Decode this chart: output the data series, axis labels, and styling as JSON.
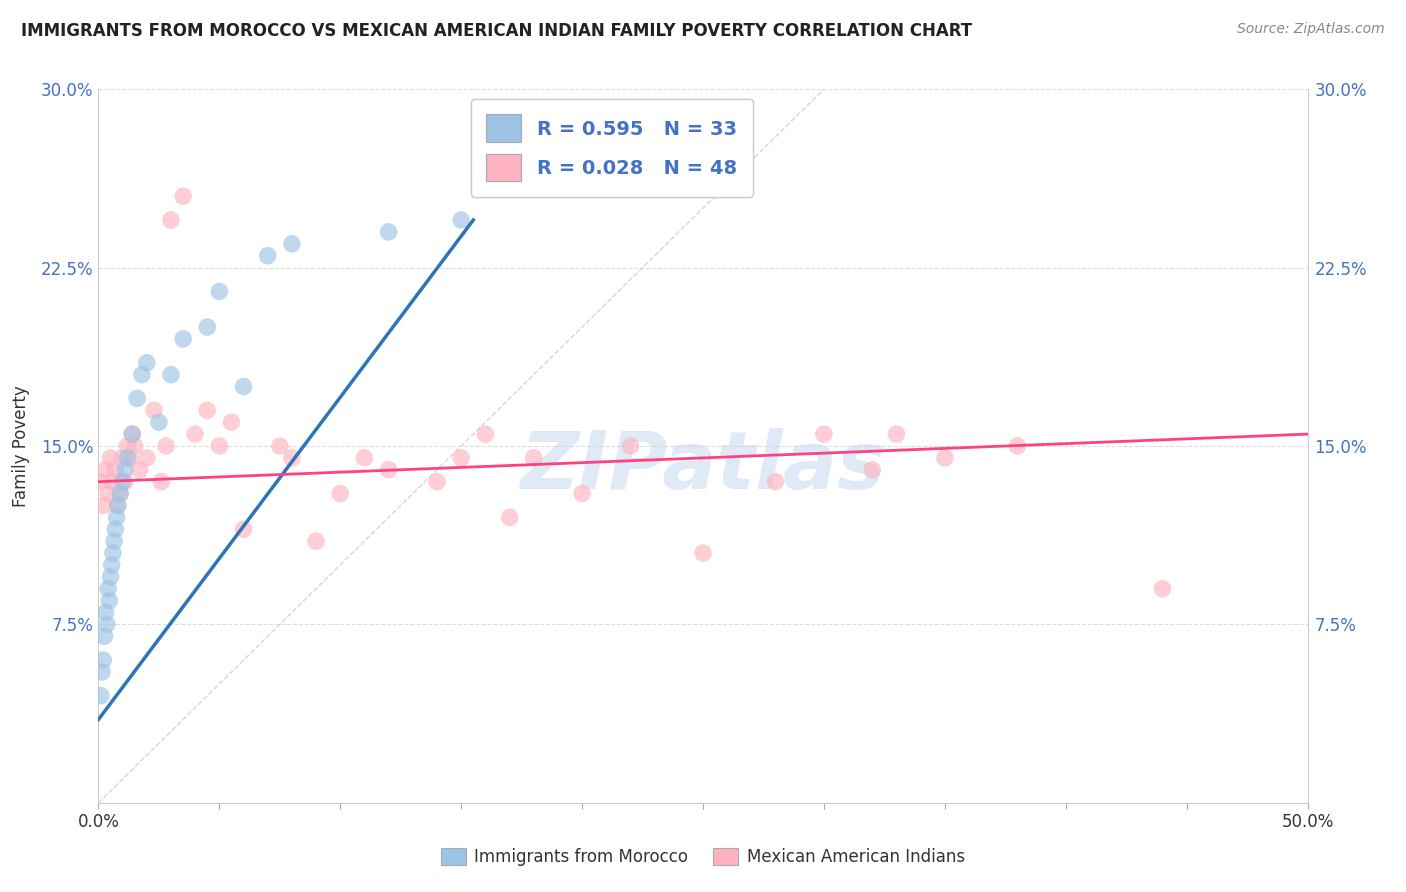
{
  "title": "IMMIGRANTS FROM MOROCCO VS MEXICAN AMERICAN INDIAN FAMILY POVERTY CORRELATION CHART",
  "source": "Source: ZipAtlas.com",
  "ylabel": "Family Poverty",
  "xlim": [
    0,
    50
  ],
  "ylim": [
    0,
    30
  ],
  "xtick_positions": [
    0,
    5,
    10,
    15,
    20,
    25,
    30,
    35,
    40,
    45,
    50
  ],
  "xtick_labels_shown": {
    "0": "0.0%",
    "50": "50.0%"
  },
  "ytick_vals": [
    7.5,
    15.0,
    22.5,
    30.0
  ],
  "ytick_labels": [
    "7.5%",
    "15.0%",
    "22.5%",
    "30.0%"
  ],
  "legend_R": [
    0.595,
    0.028
  ],
  "legend_N": [
    33,
    48
  ],
  "legend_series": [
    "Immigrants from Morocco",
    "Mexican American Indians"
  ],
  "color_blue": "#9DC3E6",
  "color_pink": "#FFB3C1",
  "line_blue": "#2E75B6",
  "line_pink": "#FF4081",
  "watermark": "ZIPatlas",
  "blue_x": [
    0.1,
    0.15,
    0.2,
    0.25,
    0.3,
    0.35,
    0.4,
    0.45,
    0.5,
    0.55,
    0.6,
    0.65,
    0.7,
    0.75,
    0.8,
    0.9,
    1.0,
    1.1,
    1.2,
    1.4,
    1.6,
    1.8,
    2.0,
    2.5,
    3.0,
    3.5,
    4.5,
    5.0,
    6.0,
    7.0,
    8.0,
    12.0,
    15.0
  ],
  "blue_y": [
    4.5,
    5.5,
    6.0,
    7.0,
    8.0,
    7.5,
    9.0,
    8.5,
    9.5,
    10.0,
    10.5,
    11.0,
    11.5,
    12.0,
    12.5,
    13.0,
    13.5,
    14.0,
    14.5,
    15.5,
    17.0,
    18.0,
    18.5,
    16.0,
    18.0,
    19.5,
    20.0,
    21.5,
    17.5,
    23.0,
    23.5,
    24.0,
    24.5
  ],
  "pink_x": [
    0.1,
    0.2,
    0.3,
    0.4,
    0.5,
    0.6,
    0.7,
    0.8,
    0.9,
    1.0,
    1.1,
    1.2,
    1.3,
    1.4,
    1.5,
    1.7,
    2.0,
    2.3,
    2.6,
    2.8,
    3.0,
    3.5,
    4.0,
    4.5,
    5.0,
    5.5,
    6.0,
    7.5,
    8.0,
    9.0,
    10.0,
    11.0,
    12.0,
    14.0,
    15.0,
    16.0,
    17.0,
    18.0,
    20.0,
    22.0,
    25.0,
    28.0,
    30.0,
    32.0,
    33.0,
    35.0,
    38.0,
    44.0
  ],
  "pink_y": [
    13.5,
    12.5,
    14.0,
    13.0,
    14.5,
    13.5,
    14.0,
    12.5,
    13.0,
    14.5,
    13.5,
    15.0,
    14.5,
    15.5,
    15.0,
    14.0,
    14.5,
    16.5,
    13.5,
    15.0,
    24.5,
    25.5,
    15.5,
    16.5,
    15.0,
    16.0,
    11.5,
    15.0,
    14.5,
    11.0,
    13.0,
    14.5,
    14.0,
    13.5,
    14.5,
    15.5,
    12.0,
    14.5,
    13.0,
    15.0,
    10.5,
    13.5,
    15.5,
    14.0,
    15.5,
    14.5,
    15.0,
    9.0
  ],
  "blue_line_x": [
    0.0,
    15.5
  ],
  "blue_line_y": [
    3.5,
    24.5
  ],
  "pink_line_x": [
    0.0,
    50.0
  ],
  "pink_line_y": [
    13.5,
    15.5
  ],
  "ref_line_x": [
    0,
    30
  ],
  "ref_line_y": [
    0,
    30
  ]
}
